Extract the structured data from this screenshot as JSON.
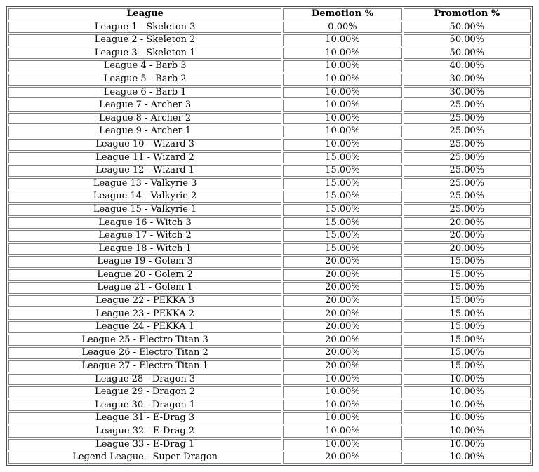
{
  "page": {
    "background_color": "#ffffff",
    "text_color": "#000000",
    "outer_border_color": "#4e4e4e",
    "cell_border_color": "#828282"
  },
  "table": {
    "columns": [
      "League",
      "Demotion %",
      "Promotion %"
    ],
    "rows": [
      [
        "League 1 - Skeleton 3",
        "0.00%",
        "50.00%"
      ],
      [
        "League 2 - Skeleton 2",
        "10.00%",
        "50.00%"
      ],
      [
        "League 3 - Skeleton 1",
        "10.00%",
        "50.00%"
      ],
      [
        "League 4 - Barb 3",
        "10.00%",
        "40.00%"
      ],
      [
        "League 5 - Barb 2",
        "10.00%",
        "30.00%"
      ],
      [
        "League 6 - Barb 1",
        "10.00%",
        "30.00%"
      ],
      [
        "League 7 - Archer 3",
        "10.00%",
        "25.00%"
      ],
      [
        "League 8 - Archer 2",
        "10.00%",
        "25.00%"
      ],
      [
        "League 9 - Archer 1",
        "10.00%",
        "25.00%"
      ],
      [
        "League 10 - Wizard 3",
        "10.00%",
        "25.00%"
      ],
      [
        "League 11 - Wizard 2",
        "15.00%",
        "25.00%"
      ],
      [
        "League 12 - Wizard 1",
        "15.00%",
        "25.00%"
      ],
      [
        "League 13 - Valkyrie 3",
        "15.00%",
        "25.00%"
      ],
      [
        "League 14 - Valkyrie 2",
        "15.00%",
        "25.00%"
      ],
      [
        "League 15 - Valkyrie 1",
        "15.00%",
        "25.00%"
      ],
      [
        "League 16 - Witch 3",
        "15.00%",
        "20.00%"
      ],
      [
        "League 17 - Witch 2",
        "15.00%",
        "20.00%"
      ],
      [
        "League 18 - Witch 1",
        "15.00%",
        "20.00%"
      ],
      [
        "League 19 - Golem 3",
        "20.00%",
        "15.00%"
      ],
      [
        "League 20 - Golem 2",
        "20.00%",
        "15.00%"
      ],
      [
        "League 21 - Golem 1",
        "20.00%",
        "15.00%"
      ],
      [
        "League 22 - PEKKA 3",
        "20.00%",
        "15.00%"
      ],
      [
        "League 23 - PEKKA 2",
        "20.00%",
        "15.00%"
      ],
      [
        "League 24 - PEKKA 1",
        "20.00%",
        "15.00%"
      ],
      [
        "League 25 - Electro Titan 3",
        "20.00%",
        "15.00%"
      ],
      [
        "League 26 - Electro Titan 2",
        "20.00%",
        "15.00%"
      ],
      [
        "League 27 - Electro Titan 1",
        "20.00%",
        "15.00%"
      ],
      [
        "League 28 - Dragon 3",
        "10.00%",
        "10.00%"
      ],
      [
        "League 29 - Dragon 2",
        "10.00%",
        "10.00%"
      ],
      [
        "League 30 - Dragon 1",
        "10.00%",
        "10.00%"
      ],
      [
        "League 31 - E-Drag 3",
        "10.00%",
        "10.00%"
      ],
      [
        "League 32 - E-Drag 2",
        "10.00%",
        "10.00%"
      ],
      [
        "League 33 - E-Drag 1",
        "10.00%",
        "10.00%"
      ],
      [
        "Legend League - Super Dragon",
        "20.00%",
        "10.00%"
      ]
    ]
  }
}
